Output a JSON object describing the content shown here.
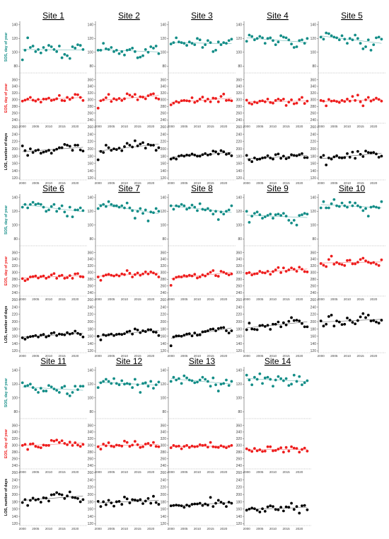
{
  "figure": {
    "years": [
      2000,
      2001,
      2002,
      2003,
      2004,
      2005,
      2006,
      2007,
      2008,
      2009,
      2010,
      2011,
      2012,
      2013,
      2014,
      2015,
      2016,
      2017,
      2018,
      2019,
      2020,
      2021,
      2022,
      2023
    ],
    "year_ticks": [
      "2000",
      "2005",
      "2010",
      "2015",
      "2020"
    ],
    "colors": {
      "sos": "#138d87",
      "eos": "#ee1d1d",
      "los": "#000000"
    },
    "row_labels": {
      "sos": "SOS, day of year",
      "eos": "EOS, day of year",
      "los": "LOS, number of days"
    },
    "axes": {
      "sos": {
        "ylim": [
          70,
          145
        ],
        "ticks": [
          "80",
          "100",
          "120",
          "140"
        ]
      },
      "eos": {
        "ylim": [
          230,
          380
        ],
        "ticks": [
          "240",
          "260",
          "280",
          "300",
          "320",
          "340",
          "360"
        ]
      },
      "los": {
        "ylim": [
          115,
          270
        ],
        "ticks": [
          "120",
          "140",
          "160",
          "180",
          "200",
          "220",
          "240",
          "260"
        ]
      }
    }
  },
  "chart_data": [
    {
      "title": "Site 1",
      "type": "scatter",
      "sos": [
        89,
        103,
        121,
        107,
        109,
        101,
        104,
        99,
        107,
        103,
        110,
        108,
        104,
        101,
        109,
        92,
        97,
        95,
        91,
        108,
        106,
        111,
        110,
        104
      ],
      "eos": [
        296,
        299,
        302,
        307,
        299,
        296,
        301,
        293,
        302,
        302,
        305,
        298,
        300,
        303,
        313,
        298,
        297,
        307,
        301,
        306,
        316,
        315,
        307,
        298
      ],
      "los": [
        208,
        195,
        182,
        200,
        190,
        195,
        197,
        188,
        191,
        193,
        196,
        188,
        196,
        199,
        203,
        203,
        212,
        210,
        207,
        196,
        210,
        210,
        197,
        194
      ]
    },
    {
      "title": "Site 2",
      "type": "scatter",
      "sos": [
        103,
        103,
        113,
        105,
        104,
        107,
        101,
        103,
        98,
        101,
        96,
        103,
        104,
        106,
        101,
        92,
        93,
        95,
        104,
        100,
        108,
        106,
        109,
        98
      ],
      "eos": [
        275,
        297,
        300,
        306,
        316,
        295,
        303,
        300,
        304,
        298,
        303,
        318,
        314,
        309,
        316,
        300,
        309,
        308,
        303,
        312,
        316,
        318,
        305,
        302
      ],
      "los": [
        170,
        193,
        190,
        210,
        203,
        196,
        200,
        198,
        202,
        195,
        206,
        215,
        210,
        205,
        222,
        208,
        213,
        217,
        202,
        212,
        210,
        210,
        196,
        203
      ]
    },
    {
      "title": "Site 3",
      "type": "scatter",
      "sos": [
        112,
        114,
        121,
        115,
        114,
        113,
        110,
        115,
        113,
        111,
        120,
        118,
        107,
        111,
        117,
        114,
        101,
        103,
        115,
        111,
        114,
        113,
        117,
        119
      ],
      "eos": [
        285,
        290,
        295,
        292,
        297,
        298,
        297,
        296,
        306,
        292,
        296,
        302,
        308,
        296,
        302,
        294,
        305,
        304,
        294,
        310,
        317,
        298,
        299,
        297
      ],
      "los": [
        172,
        175,
        172,
        180,
        182,
        180,
        183,
        182,
        186,
        183,
        180,
        180,
        184,
        187,
        183,
        185,
        194,
        192,
        186,
        195,
        192,
        185,
        187,
        181
      ]
    },
    {
      "title": "Site 4",
      "type": "scatter",
      "sos": [
        116,
        125,
        123,
        118,
        120,
        123,
        121,
        113,
        120,
        121,
        117,
        111,
        115,
        124,
        122,
        121,
        118,
        112,
        107,
        108,
        117,
        118,
        113,
        120
      ],
      "eos": [
        299,
        290,
        287,
        293,
        291,
        296,
        297,
        294,
        302,
        292,
        290,
        298,
        302,
        298,
        302,
        283,
        293,
        300,
        288,
        290,
        301,
        307,
        289,
        296
      ],
      "los": [
        182,
        170,
        165,
        175,
        171,
        172,
        175,
        176,
        181,
        175,
        172,
        184,
        186,
        174,
        180,
        173,
        176,
        184,
        182,
        181,
        184,
        187,
        176,
        176
      ]
    },
    {
      "title": "Site 5",
      "type": "scatter",
      "sos": [
        122,
        119,
        128,
        127,
        124,
        122,
        121,
        118,
        124,
        119,
        113,
        120,
        118,
        125,
        120,
        113,
        105,
        108,
        118,
        103,
        111,
        121,
        122,
        119
      ],
      "eos": [
        298,
        296,
        282,
        301,
        296,
        297,
        295,
        292,
        298,
        295,
        302,
        296,
        310,
        298,
        314,
        294,
        282,
        300,
        307,
        296,
        300,
        305,
        301,
        296
      ],
      "los": [
        177,
        182,
        156,
        175,
        172,
        178,
        181,
        176,
        175,
        176,
        187,
        177,
        191,
        174,
        193,
        185,
        179,
        194,
        190,
        189,
        190,
        186,
        177,
        180
      ]
    },
    {
      "title": "Site 6",
      "type": "scatter",
      "sos": [
        126,
        130,
        125,
        130,
        133,
        130,
        131,
        130,
        126,
        120,
        122,
        127,
        130,
        120,
        124,
        128,
        119,
        113,
        126,
        112,
        122,
        122,
        125,
        121
      ],
      "eos": [
        282,
        276,
        280,
        287,
        288,
        290,
        284,
        288,
        290,
        283,
        287,
        293,
        297,
        283,
        290,
        292,
        283,
        285,
        291,
        283,
        296,
        297,
        288,
        287
      ],
      "los": [
        156,
        152,
        157,
        159,
        160,
        162,
        158,
        163,
        165,
        158,
        161,
        168,
        170,
        162,
        166,
        165,
        164,
        170,
        166,
        168,
        174,
        168,
        165,
        158
      ]
    },
    {
      "title": "Site 7",
      "type": "scatter",
      "sos": [
        124,
        128,
        130,
        127,
        134,
        130,
        128,
        128,
        126,
        128,
        125,
        132,
        125,
        121,
        110,
        120,
        124,
        117,
        122,
        106,
        119,
        118,
        124,
        120
      ],
      "eos": [
        287,
        277,
        290,
        293,
        295,
        292,
        290,
        293,
        290,
        296,
        294,
        306,
        298,
        287,
        294,
        299,
        292,
        296,
        302,
        296,
        302,
        299,
        295,
        287
      ],
      "los": [
        160,
        150,
        164,
        162,
        164,
        166,
        162,
        165,
        166,
        165,
        167,
        172,
        174,
        166,
        180,
        177,
        170,
        175,
        173,
        178,
        178,
        172,
        171,
        162
      ]
    },
    {
      "title": "Site 8",
      "type": "scatter",
      "sos": [
        128,
        123,
        128,
        127,
        130,
        128,
        123,
        125,
        129,
        126,
        121,
        131,
        123,
        122,
        124,
        121,
        116,
        120,
        108,
        119,
        116,
        120,
        122,
        128
      ],
      "eos": [
        262,
        281,
        286,
        288,
        287,
        291,
        289,
        292,
        290,
        295,
        284,
        287,
        293,
        290,
        296,
        301,
        306,
        291,
        289,
        304,
        301,
        297,
        293,
        296
      ],
      "los": [
        134,
        158,
        161,
        161,
        160,
        163,
        166,
        167,
        161,
        169,
        163,
        164,
        172,
        173,
        175,
        179,
        180,
        175,
        181,
        183,
        184,
        175,
        169,
        175
      ]
    },
    {
      "title": "Site 9",
      "type": "scatter",
      "sos": [
        120,
        104,
        113,
        117,
        119,
        115,
        110,
        112,
        114,
        116,
        110,
        115,
        116,
        114,
        117,
        113,
        107,
        103,
        107,
        100,
        114,
        115,
        117,
        116
      ],
      "eos": [
        298,
        300,
        293,
        296,
        297,
        304,
        300,
        299,
        304,
        295,
        303,
        308,
        315,
        300,
        314,
        304,
        308,
        314,
        310,
        304,
        316,
        310,
        303,
        302
      ],
      "los": [
        178,
        196,
        180,
        179,
        178,
        189,
        190,
        187,
        190,
        179,
        193,
        193,
        199,
        186,
        197,
        191,
        201,
        211,
        203,
        204,
        202,
        195,
        186,
        186
      ]
    },
    {
      "title": "Site 10",
      "type": "scatter",
      "sos": [
        125,
        134,
        125,
        125,
        131,
        137,
        128,
        127,
        132,
        128,
        126,
        133,
        128,
        132,
        128,
        126,
        121,
        124,
        113,
        126,
        127,
        126,
        125,
        134
      ],
      "eos": [
        327,
        322,
        318,
        339,
        349,
        325,
        330,
        326,
        324,
        321,
        336,
        337,
        326,
        326,
        331,
        339,
        343,
        335,
        331,
        328,
        330,
        325,
        321,
        338
      ],
      "los": [
        202,
        188,
        193,
        214,
        218,
        188,
        202,
        199,
        192,
        193,
        210,
        204,
        198,
        194,
        203,
        213,
        222,
        211,
        218,
        202,
        203,
        199,
        196,
        204
      ]
    },
    {
      "title": "Site 11",
      "type": "scatter",
      "sos": [
        122,
        117,
        118,
        120,
        115,
        112,
        108,
        114,
        110,
        110,
        118,
        116,
        113,
        111,
        108,
        115,
        117,
        106,
        103,
        108,
        117,
        112,
        117,
        117
      ],
      "eos": [
        300,
        303,
        288,
        304,
        305,
        297,
        295,
        293,
        301,
        300,
        300,
        315,
        313,
        316,
        309,
        314,
        306,
        302,
        310,
        300,
        308,
        301,
        297,
        303
      ],
      "los": [
        178,
        186,
        170,
        184,
        190,
        185,
        187,
        179,
        191,
        190,
        182,
        199,
        200,
        205,
        201,
        199,
        189,
        196,
        207,
        192,
        191,
        189,
        180,
        186
      ]
    },
    {
      "title": "Site 12",
      "type": "scatter",
      "sos": [
        115,
        122,
        124,
        127,
        124,
        121,
        128,
        121,
        119,
        125,
        120,
        121,
        120,
        115,
        127,
        119,
        108,
        121,
        122,
        117,
        124,
        114,
        119,
        123
      ],
      "eos": [
        296,
        289,
        304,
        299,
        308,
        298,
        296,
        301,
        300,
        298,
        313,
        309,
        297,
        301,
        312,
        302,
        294,
        296,
        304,
        306,
        300,
        309,
        297,
        296
      ],
      "los": [
        181,
        167,
        180,
        172,
        184,
        177,
        168,
        180,
        181,
        173,
        193,
        188,
        177,
        186,
        185,
        183,
        186,
        175,
        182,
        189,
        176,
        195,
        178,
        173
      ]
    },
    {
      "title": "Site 13",
      "type": "scatter",
      "sos": [
        124,
        130,
        126,
        128,
        121,
        132,
        129,
        126,
        125,
        122,
        123,
        126,
        130,
        127,
        124,
        117,
        129,
        119,
        110,
        120,
        121,
        126,
        118,
        124
      ],
      "eos": [
        293,
        300,
        297,
        298,
        290,
        297,
        300,
        294,
        298,
        296,
        297,
        302,
        300,
        301,
        295,
        309,
        296,
        295,
        294,
        299,
        296,
        293,
        297,
        300
      ],
      "los": [
        169,
        170,
        171,
        170,
        169,
        165,
        171,
        168,
        173,
        174,
        174,
        176,
        170,
        174,
        171,
        192,
        167,
        176,
        184,
        179,
        175,
        167,
        179,
        176
      ]
    },
    {
      "title": "Site 14",
      "type": "scatter",
      "sos": [
        133,
        126,
        119,
        130,
        127,
        135,
        121,
        129,
        130,
        127,
        117,
        126,
        131,
        128,
        125,
        128,
        118,
        120,
        133,
        124,
        131,
        119,
        122,
        125
      ],
      "eos": [
        290,
        286,
        282,
        291,
        284,
        287,
        282,
        283,
        296,
        296,
        284,
        285,
        289,
        293,
        280,
        294,
        283,
        296,
        292,
        291,
        280,
        288,
        292,
        283
      ],
      "los": [
        157,
        160,
        163,
        161,
        157,
        152,
        161,
        154,
        166,
        169,
        167,
        159,
        158,
        165,
        155,
        166,
        165,
        176,
        159,
        167,
        149,
        169,
        170,
        158
      ]
    }
  ]
}
